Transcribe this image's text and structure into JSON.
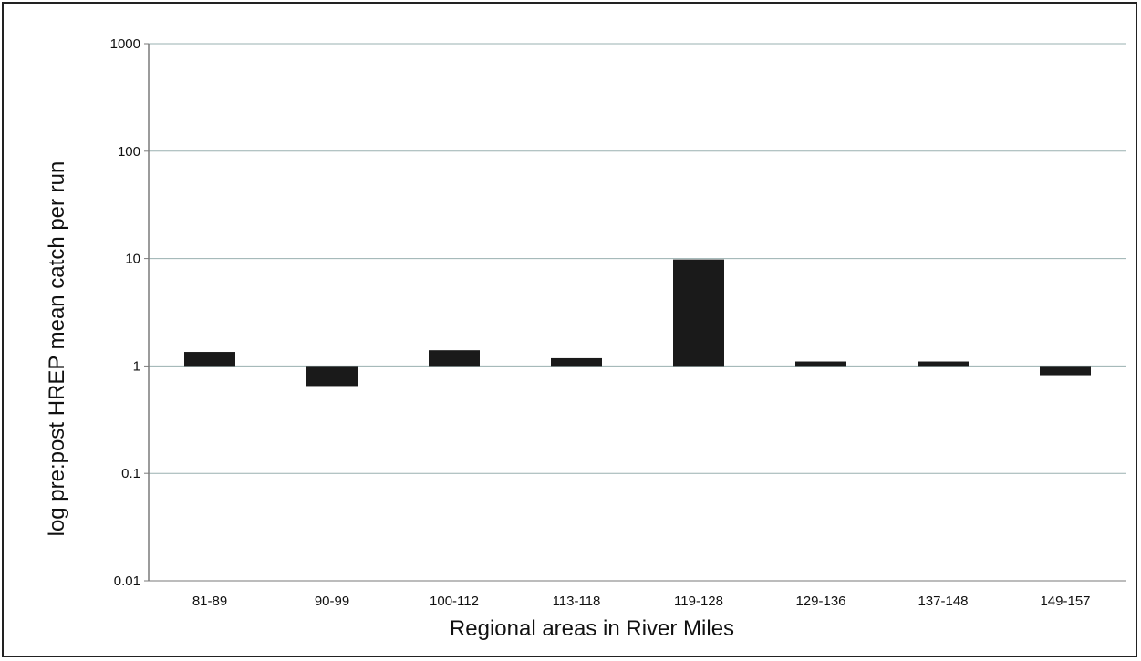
{
  "chart_data": {
    "type": "bar",
    "title": "",
    "xlabel": "Regional areas in River Miles",
    "ylabel": "log pre:post HREP mean catch per run",
    "yscale": "log",
    "ylim": [
      0.01,
      1000
    ],
    "baseline": 1,
    "yticks": [
      "1000",
      "100",
      "10",
      "1",
      "0.1",
      "0.01"
    ],
    "ytick_values": [
      1000,
      100,
      10,
      1,
      0.1,
      0.01
    ],
    "categories": [
      "81-89",
      "90-99",
      "100-112",
      "113-118",
      "119-128",
      "129-136",
      "137-148",
      "149-157"
    ],
    "values": [
      1.35,
      0.65,
      1.4,
      1.18,
      9.8,
      1.1,
      1.1,
      0.82
    ],
    "grid": true,
    "legend": "none",
    "colors": {
      "bar": "#1a1a1a",
      "grid": "#9ab0b0",
      "axis": "#7a7a7a"
    }
  }
}
